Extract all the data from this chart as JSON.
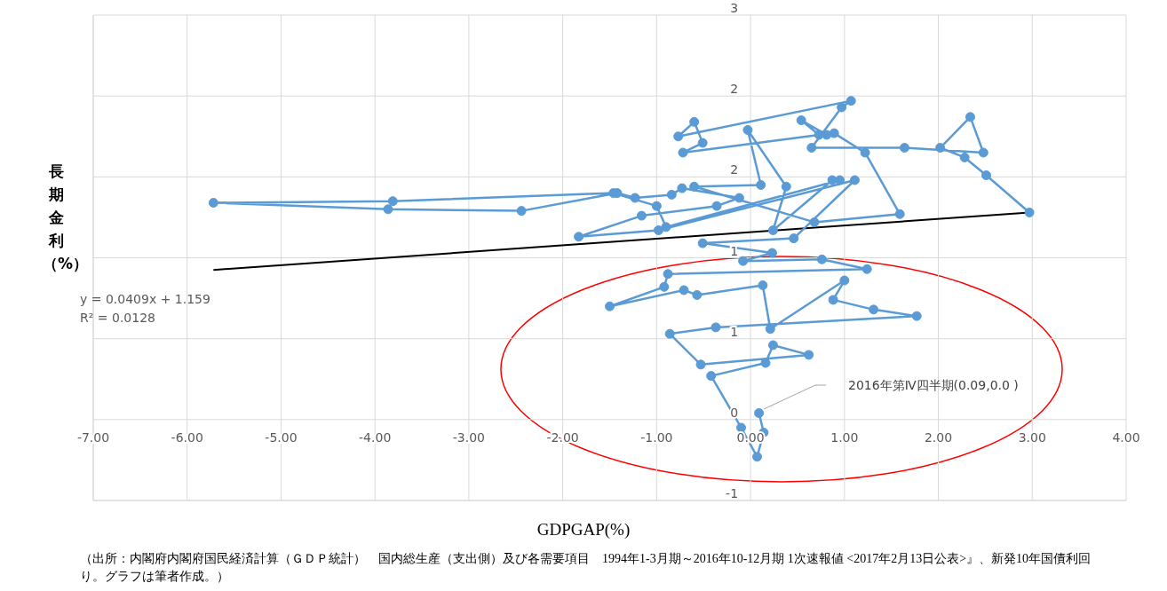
{
  "chart_data": {
    "type": "line",
    "xlabel": "GDPGAP(%)",
    "ylabel": "長期金利（%）",
    "xlim": [
      -7,
      4
    ],
    "xticks": [
      {
        "value": -7,
        "label": "-7.00"
      },
      {
        "value": -6,
        "label": "-6.00"
      },
      {
        "value": -5,
        "label": "-5.00"
      },
      {
        "value": -4,
        "label": "-4.00"
      },
      {
        "value": -3,
        "label": "-3.00"
      },
      {
        "value": -2,
        "label": "-2.00"
      },
      {
        "value": -1,
        "label": "-1.00"
      },
      {
        "value": 0,
        "label": "0.00"
      },
      {
        "value": 1,
        "label": "1.00"
      },
      {
        "value": 2,
        "label": "2.00"
      },
      {
        "value": 3,
        "label": "3.00"
      },
      {
        "value": 4,
        "label": "4.00"
      }
    ],
    "ylim": [
      -0.5,
      2.5
    ],
    "yticks": [
      {
        "value": -0.5,
        "label": "-1"
      },
      {
        "value": 0,
        "label": "0"
      },
      {
        "value": 0.5,
        "label": "1"
      },
      {
        "value": 1,
        "label": "1"
      },
      {
        "value": 1.5,
        "label": "2"
      },
      {
        "value": 2,
        "label": "2"
      },
      {
        "value": 2.5,
        "label": "3"
      }
    ],
    "grid": true,
    "marker": "circle",
    "line_style": "solid",
    "series": [
      {
        "color": "#5b9bd5",
        "x": [
          2.97,
          2.51,
          2.28,
          2.02,
          2.34,
          2.48,
          1.64,
          0.65,
          0.97,
          1.07,
          -0.77,
          -0.6,
          -0.51,
          -0.72,
          0.73,
          0.54,
          0.81,
          0.89,
          1.22,
          1.59,
          0.68,
          -0.6,
          0.11,
          -0.03,
          0.38,
          0.24,
          0.87,
          0.95,
          -0.9,
          -1.0,
          -1.46,
          -3.81,
          -5.72,
          -3.86,
          -2.44,
          -1.42,
          -1.23,
          -0.84,
          -0.73,
          -0.12,
          -0.36,
          -1.16,
          -1.83,
          -0.98,
          1.11,
          0.46,
          -0.51,
          0.23,
          -0.08,
          0.76,
          1.24,
          -0.88,
          -0.92,
          -1.5,
          -0.71,
          -0.57,
          0.13,
          0.21,
          1.0,
          0.88,
          1.31,
          1.77,
          -0.37,
          -0.86,
          -0.53,
          0.62,
          0.24,
          0.16,
          -0.42,
          -0.1,
          0.07,
          0.14,
          0.09
        ],
        "values": [
          1.28,
          1.51,
          1.62,
          1.68,
          1.87,
          1.65,
          1.68,
          1.68,
          1.93,
          1.97,
          1.75,
          1.84,
          1.71,
          1.65,
          1.76,
          1.85,
          1.76,
          1.77,
          1.65,
          1.27,
          1.22,
          1.44,
          1.45,
          1.79,
          1.44,
          1.17,
          1.48,
          1.48,
          1.19,
          1.32,
          1.4,
          1.35,
          1.34,
          1.3,
          1.29,
          1.4,
          1.37,
          1.39,
          1.43,
          1.37,
          1.32,
          1.26,
          1.13,
          1.17,
          1.48,
          1.12,
          1.09,
          1.03,
          0.98,
          0.99,
          0.93,
          0.9,
          0.82,
          0.7,
          0.8,
          0.77,
          0.83,
          0.56,
          0.86,
          0.74,
          0.68,
          0.64,
          0.57,
          0.53,
          0.34,
          0.4,
          0.46,
          0.35,
          0.27,
          -0.05,
          -0.23,
          -0.08,
          0.04
        ]
      },
      {
        "type": "line",
        "color": "#000000",
        "marker": "none",
        "x": [
          -5.72,
          2.97
        ],
        "values": [
          0.925,
          1.28
        ]
      }
    ],
    "annotations": [
      "y = 0.0409x + 1.159",
      "R² = 0.0128",
      "2016年第Ⅳ四半期(0.09,0.0 )",
      "（出所：内閣府内閣府国民経済計算（ＧＤＰ統計）　国内総生産（支出側）及び各需要項目　1994年1-3月期～2016年10-12月期 1次速報値 <2017年2月13日公表>』、新発10年国債利回り。グラフは筆者作成。）"
    ]
  }
}
